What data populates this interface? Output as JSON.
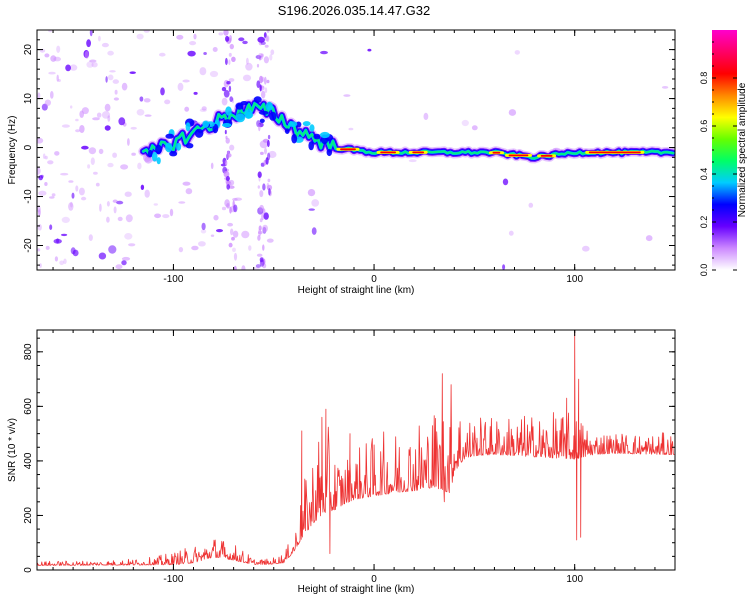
{
  "title": "S196.2026.035.14.47.G32",
  "chart_data": [
    {
      "type": "heatmap",
      "name": "spectrogram",
      "xlabel": "Height of straight line (km)",
      "ylabel": "Frequency (Hz)",
      "xlim": [
        -168,
        150
      ],
      "ylim": [
        -25,
        24
      ],
      "xticks": [
        -100,
        0,
        100
      ],
      "yticks": [
        -20,
        -10,
        0,
        10,
        20
      ],
      "colorbar": {
        "label": "Normalized spectral amplitude",
        "range": [
          0,
          1
        ],
        "ticks": [
          "0.0",
          "0.2",
          "0.4",
          "0.6",
          "0.8"
        ],
        "colors": [
          "#ffffff",
          "#cc88ff",
          "#6600ff",
          "#0000ff",
          "#00ccff",
          "#00ff66",
          "#66ff00",
          "#ffff00",
          "#ff8800",
          "#ff0000",
          "#ff0066",
          "#ff00cc"
        ]
      },
      "ridge": {
        "x": [
          -115,
          -100,
          -90,
          -80,
          -70,
          -60,
          -50,
          -40,
          -30,
          -20,
          0,
          20,
          40,
          60,
          80,
          100,
          120,
          150
        ],
        "y": [
          -2,
          1,
          3,
          5,
          7,
          8,
          7,
          4,
          2,
          0,
          -1,
          -1,
          -1,
          -1,
          -2,
          -1,
          -1,
          -1
        ]
      }
    },
    {
      "type": "line",
      "name": "snr",
      "xlabel": "Height of straight line (km)",
      "ylabel": "SNR (10 * v/v)",
      "xlim": [
        -168,
        150
      ],
      "ylim": [
        0,
        880
      ],
      "xticks": [
        -100,
        0,
        100
      ],
      "yticks": [
        0,
        200,
        400,
        600,
        800
      ],
      "color": "#ee3333",
      "envelope": {
        "x": [
          -168,
          -130,
          -110,
          -100,
          -90,
          -80,
          -70,
          -60,
          -52,
          -45,
          -40,
          -35,
          -30,
          -25,
          -20,
          -15,
          -10,
          -5,
          0,
          10,
          20,
          30,
          38,
          40,
          45,
          50,
          60,
          80,
          100,
          110,
          120,
          150
        ],
        "base": [
          20,
          22,
          25,
          30,
          40,
          65,
          50,
          25,
          25,
          35,
          80,
          170,
          240,
          290,
          270,
          280,
          300,
          310,
          320,
          335,
          350,
          370,
          380,
          430,
          445,
          450,
          455,
          450,
          445,
          445,
          445,
          440
        ],
        "amp": [
          10,
          12,
          18,
          30,
          40,
          50,
          40,
          15,
          12,
          25,
          40,
          120,
          190,
          230,
          150,
          110,
          120,
          130,
          140,
          150,
          170,
          190,
          280,
          200,
          110,
          90,
          90,
          100,
          110,
          60,
          50,
          50
        ]
      },
      "spikes": [
        {
          "x": 100,
          "y": 880
        },
        {
          "x": 101,
          "y": 110
        },
        {
          "x": 102,
          "y": 700
        },
        {
          "x": 96,
          "y": 630
        },
        {
          "x": 103,
          "y": 120
        },
        {
          "x": 34,
          "y": 720
        },
        {
          "x": 35,
          "y": 250
        },
        {
          "x": -24,
          "y": 590
        },
        {
          "x": -22,
          "y": 60
        },
        {
          "x": -26,
          "y": 560
        },
        {
          "x": -36,
          "y": 510
        },
        {
          "x": -12,
          "y": 500
        }
      ]
    }
  ]
}
